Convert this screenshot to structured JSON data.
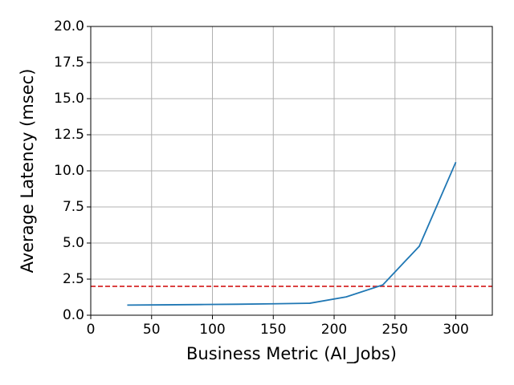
{
  "chart_data": {
    "type": "line",
    "xlabel": "Business Metric (AI_Jobs)",
    "ylabel": "Average Latency (msec)",
    "x": [
      30,
      60,
      90,
      120,
      150,
      180,
      210,
      240,
      270,
      300
    ],
    "series": [
      {
        "color": "#1f77b4",
        "values": [
          0.7,
          0.72,
          0.74,
          0.76,
          0.79,
          0.83,
          1.27,
          2.1,
          4.78,
          10.6
        ]
      }
    ],
    "hlines": [
      {
        "value": 2,
        "color": "#d62728",
        "style": "dashed"
      }
    ],
    "xlim": [
      0,
      330
    ],
    "xticks": [
      0,
      50,
      100,
      150,
      200,
      250,
      300
    ],
    "ylim": [
      0,
      20
    ],
    "yticks": [
      {
        "value": 0,
        "label": "0.0"
      },
      {
        "value": 2.5,
        "label": "2.5"
      },
      {
        "value": 5,
        "label": "5.0"
      },
      {
        "value": 7.5,
        "label": "7.5"
      },
      {
        "value": 10,
        "label": "10.0"
      },
      {
        "value": 12.5,
        "label": "12.5"
      },
      {
        "value": 15,
        "label": "15.0"
      },
      {
        "value": 17.5,
        "label": "17.5"
      },
      {
        "value": 20,
        "label": "20.0"
      }
    ],
    "grid": true
  }
}
